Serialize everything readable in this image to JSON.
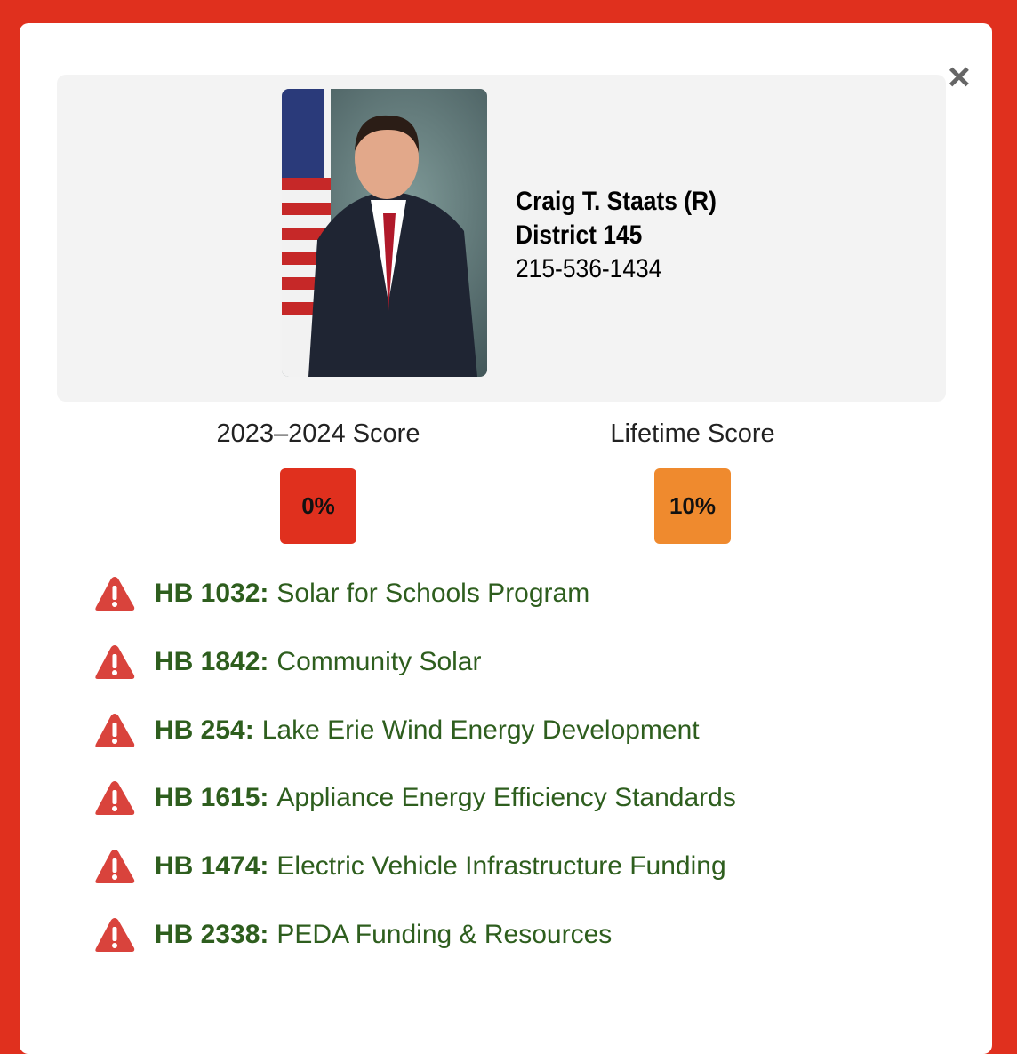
{
  "close": "×",
  "profile": {
    "name": "Craig T. Staats (R)",
    "district": "District 145",
    "phone": "215-536-1434"
  },
  "scores": [
    {
      "label": "2023–2024 Score",
      "value": "0%",
      "color": "#e0301e"
    },
    {
      "label": "Lifetime Score",
      "value": "10%",
      "color": "#ef8a2e"
    }
  ],
  "bills": [
    {
      "id": "HB 1032:",
      "title": "Solar for Schools Program"
    },
    {
      "id": "HB 1842:",
      "title": "Community Solar"
    },
    {
      "id": "HB 254:",
      "title": "Lake Erie Wind Energy Development"
    },
    {
      "id": "HB 1615:",
      "title": "Appliance Energy Efficiency Standards"
    },
    {
      "id": "HB 1474:",
      "title": "Electric Vehicle Infrastructure Funding"
    },
    {
      "id": "HB 2338:",
      "title": "PEDA Funding & Resources"
    }
  ]
}
